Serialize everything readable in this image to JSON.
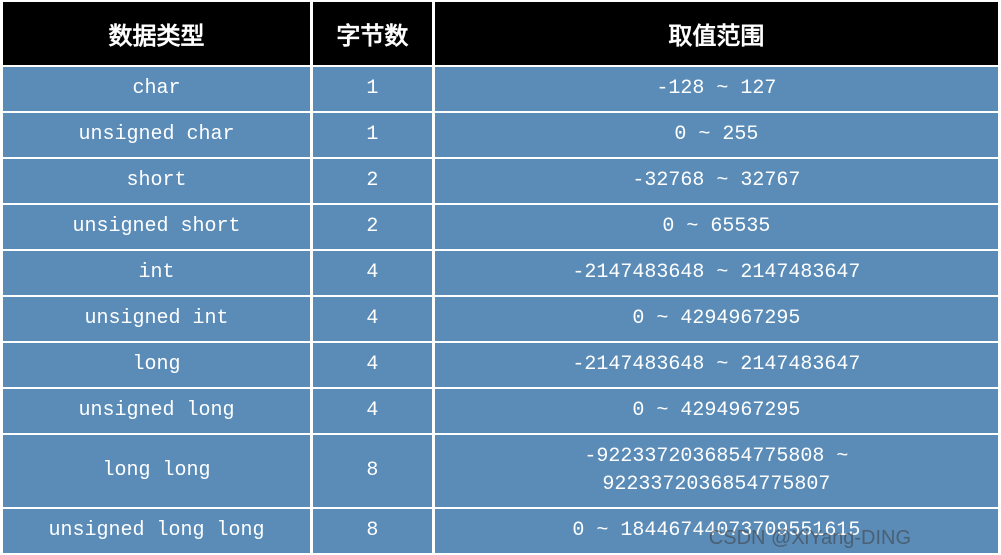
{
  "table": {
    "header": {
      "type": "数据类型",
      "bytes": "字节数",
      "range": "取值范围"
    },
    "rows": [
      {
        "type": "char",
        "bytes": "1",
        "range": "-128 ~ 127"
      },
      {
        "type": "unsigned char",
        "bytes": "1",
        "range": "0 ~ 255"
      },
      {
        "type": "short",
        "bytes": "2",
        "range": "-32768 ~ 32767"
      },
      {
        "type": "unsigned short",
        "bytes": "2",
        "range": "0 ~ 65535"
      },
      {
        "type": "int",
        "bytes": "4",
        "range": "-2147483648 ~ 2147483647"
      },
      {
        "type": "unsigned int",
        "bytes": "4",
        "range": "0 ~ 4294967295"
      },
      {
        "type": "long",
        "bytes": "4",
        "range": "-2147483648 ~ 2147483647"
      },
      {
        "type": "unsigned long",
        "bytes": "4",
        "range": "0 ~ 4294967295"
      },
      {
        "type": "long long",
        "bytes": "8",
        "range": "-9223372036854775808 ~\n9223372036854775807"
      },
      {
        "type": "unsigned long long",
        "bytes": "8",
        "range": "0 ~ 18446744073709551615"
      }
    ],
    "styling": {
      "header_bg": "#000000",
      "header_fg": "#ffffff",
      "cell_bg": "#5b8cb8",
      "cell_fg": "#ffffff",
      "border_spacing": "3px 2px",
      "header_fontsize": 24,
      "cell_fontsize": 20,
      "font_family_header": "SimHei",
      "font_family_cell": "Courier New",
      "col_widths": {
        "type": 310,
        "bytes": 120,
        "range": 568
      }
    }
  },
  "watermark": "CSDN @XiYang-DING"
}
